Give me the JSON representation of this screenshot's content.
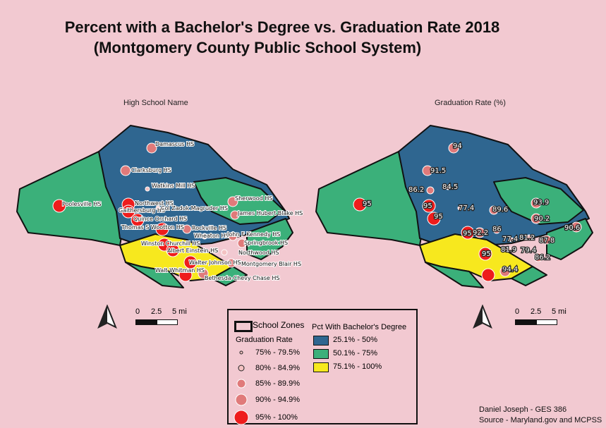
{
  "title_line1": "Percent with a Bachelor's Degree vs. Graduation Rate 2018",
  "title_line2": "(Montgomery County Public School System)",
  "left_map": {
    "label": "High School Name",
    "schools": [
      "Damascus HS",
      "Clarksburg HS",
      "Watkins Mill HS",
      "Poolesville HS",
      "Northwest HS",
      "Gaithersburg HS",
      "Col Zadok Magruder HS",
      "Sherwood HS",
      "James Hubert Blake HS",
      "Quince Orchard HS",
      "Thomas S Wootton HS",
      "Rockville HS",
      "Wheaton HS",
      "John F Kennedy HS",
      "Winston Churchill HS",
      "Springbrook HS",
      "Albert Einstein HS",
      "Northwood HS",
      "Walter Johnson HS",
      "Montgomery Blair HS",
      "Walt Whitman HS",
      "Bethesda-Chevy Chase HS"
    ]
  },
  "right_map": {
    "label": "Graduation Rate (%)",
    "rates": [
      "94",
      "91.5",
      "86.2",
      "84.5",
      "95",
      "95",
      "77.4",
      "89.6",
      "93.9",
      "95",
      "90.2",
      "90.6",
      "92.2",
      "86",
      "77.4",
      "81.2",
      "87.8",
      "95",
      "81.9",
      "79.4",
      "86.2",
      "95",
      "94.4"
    ]
  },
  "scalebar": {
    "zero": "0",
    "mid": "2.5",
    "end": "5 mi"
  },
  "legend": {
    "zones_label": "School Zones",
    "grad_title": "Graduation Rate",
    "grad_classes": [
      "75% - 79.5%",
      "80% - 84.9%",
      "85% - 89.9%",
      "90% - 94.9%",
      "95% - 100%"
    ],
    "pct_title": "Pct With Bachelor's Degree",
    "pct_classes": [
      "25.1% - 50%",
      "50.1% - 75%",
      "75.1% - 100%"
    ]
  },
  "colors": {
    "background": "#f2c9d1",
    "blue": "#2f6690",
    "green": "#3bb07a",
    "yellow": "#f7e81e",
    "dot_red": "#ee1c1c",
    "dot_pink": "#e07a7a",
    "dot_light": "#f4c2c2"
  },
  "credit_line1": "Daniel Joseph - GES 386",
  "credit_line2": "Source - Maryland.gov and MCPSS"
}
